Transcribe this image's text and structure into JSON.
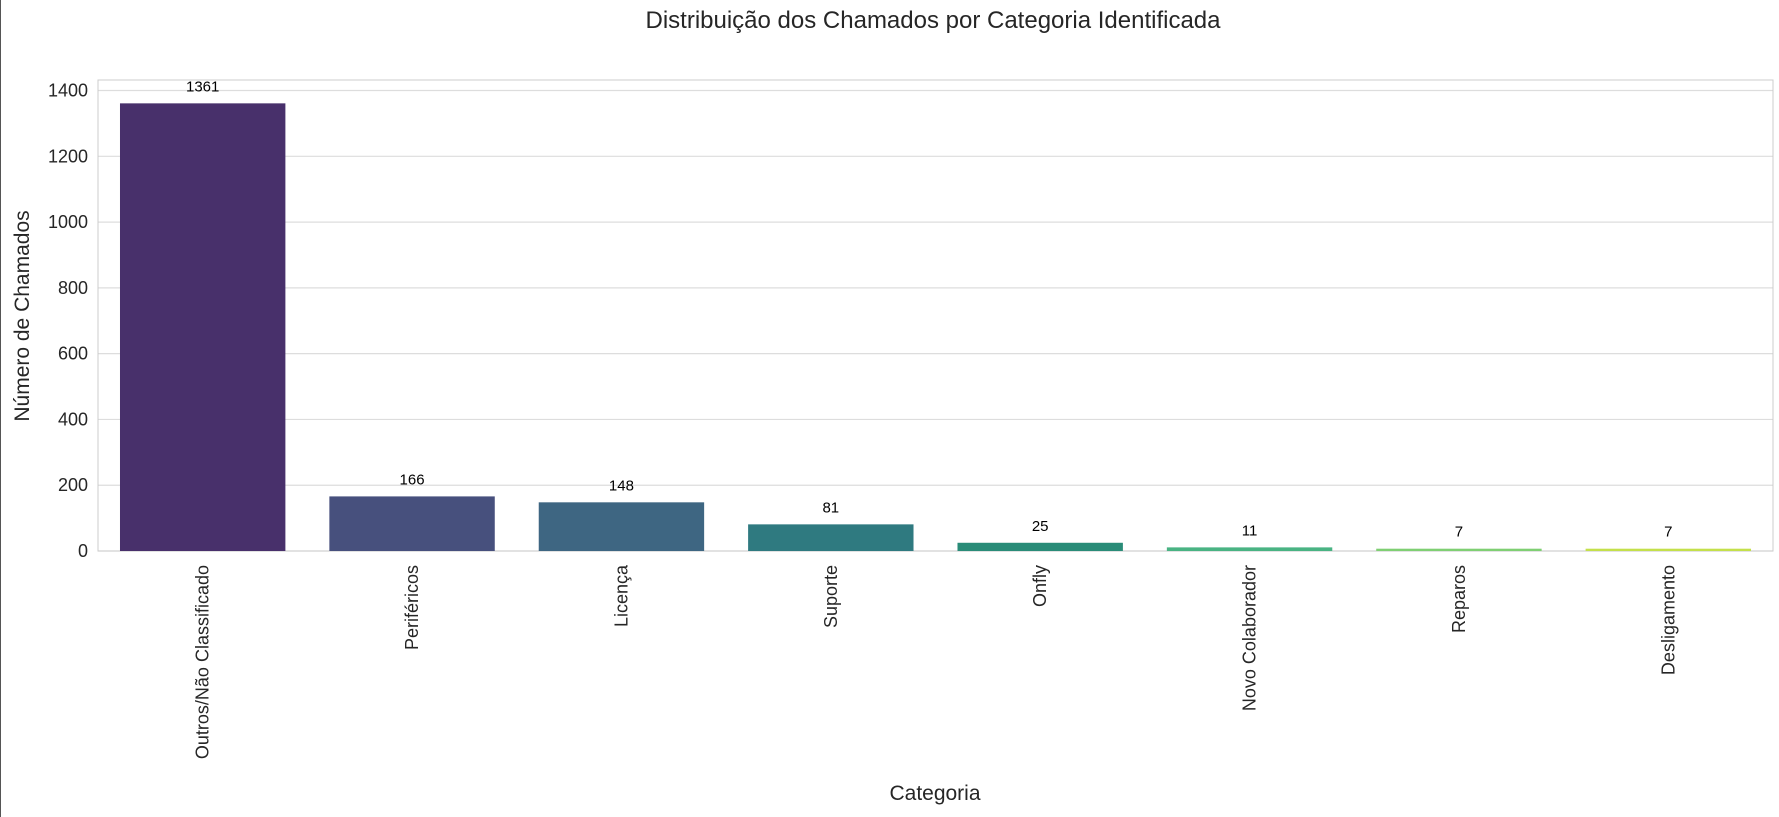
{
  "chart_data": {
    "type": "bar",
    "title": "Distribuição dos Chamados por Categoria Identificada",
    "xlabel": "Categoria",
    "ylabel": "Número de Chamados",
    "ylim": [
      0,
      1432
    ],
    "yticks": [
      0,
      200,
      400,
      600,
      800,
      1000,
      1200,
      1400
    ],
    "grid": true,
    "categories": [
      "Outros/Não Classificado",
      "Periféricos",
      "Licença",
      "Suporte",
      "Onfly",
      "Novo Colaborador",
      "Reparos",
      "Desligamento"
    ],
    "values": [
      1361,
      166,
      148,
      81,
      25,
      11,
      7,
      7
    ],
    "colors": [
      "#48306b",
      "#47507d",
      "#3e6682",
      "#2f7a80",
      "#2a8c78",
      "#49b383",
      "#7fcf73",
      "#c4e04b"
    ]
  }
}
